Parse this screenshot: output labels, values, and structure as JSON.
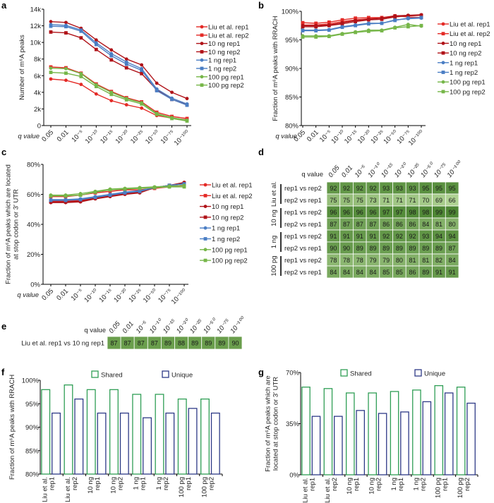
{
  "q_values": [
    "0.05",
    "0.01",
    "10⁻⁵",
    "10⁻¹⁰",
    "10⁻¹⁵",
    "10⁻²⁰",
    "10⁻²⁵",
    "10⁻⁵⁰",
    "10⁻⁷⁵",
    "10⁻¹⁰⁰"
  ],
  "q_label": "q value",
  "series_style": [
    {
      "name": "Liu et al. rep1",
      "color": "#e42a26",
      "marker": "circle"
    },
    {
      "name": "Liu et al. rep2",
      "color": "#e42a26",
      "marker": "square"
    },
    {
      "name": "10 ng rep1",
      "color": "#b01319",
      "marker": "circle"
    },
    {
      "name": "10 ng rep2",
      "color": "#b01319",
      "marker": "square"
    },
    {
      "name": "1 ng rep1",
      "color": "#4a7ec4",
      "marker": "circle"
    },
    {
      "name": "1 ng rep2",
      "color": "#4a7ec4",
      "marker": "square"
    },
    {
      "name": "100 pg rep1",
      "color": "#76b649",
      "marker": "circle"
    },
    {
      "name": "100 pg rep2",
      "color": "#76b649",
      "marker": "square"
    }
  ],
  "chart_data": [
    {
      "panel": "a",
      "type": "line",
      "xlabel": "q value",
      "ylabel": [
        "Number of m⁶A peaks"
      ],
      "ylim": [
        0,
        14000
      ],
      "yticks": [
        0,
        2000,
        4000,
        6000,
        8000,
        10000,
        12000,
        14000
      ],
      "ytick_labels": [
        "0",
        "2k",
        "4k",
        "6k",
        "8k",
        "10k",
        "12k",
        "14k"
      ],
      "legend": "right",
      "grid": false,
      "series": [
        {
          "name": "Liu et al. rep1",
          "values": [
            5600,
            5450,
            4950,
            3800,
            3000,
            2500,
            2100,
            1200,
            900,
            700
          ]
        },
        {
          "name": "Liu et al. rep2",
          "values": [
            7050,
            6950,
            6300,
            5000,
            4100,
            3350,
            2850,
            1600,
            1100,
            850
          ]
        },
        {
          "name": "10 ng rep1",
          "values": [
            12500,
            12400,
            11700,
            10300,
            9100,
            8000,
            7300,
            5100,
            4000,
            3250
          ]
        },
        {
          "name": "10 ng rep2",
          "values": [
            11250,
            11150,
            10550,
            9150,
            7900,
            6950,
            6250,
            4300,
            3150,
            2500
          ]
        },
        {
          "name": "1 ng rep1",
          "values": [
            12150,
            12050,
            11500,
            9950,
            8650,
            7650,
            6850,
            4400,
            3300,
            2600
          ]
        },
        {
          "name": "1 ng rep2",
          "values": [
            11950,
            11900,
            11350,
            9750,
            8400,
            7400,
            6650,
            4200,
            3150,
            2450
          ]
        },
        {
          "name": "100 pg rep1",
          "values": [
            6900,
            6850,
            6250,
            4900,
            4000,
            3250,
            2750,
            1450,
            950,
            650
          ]
        },
        {
          "name": "100 pg rep2",
          "values": [
            6400,
            6300,
            5900,
            4700,
            3750,
            3100,
            2600,
            1350,
            850,
            550
          ]
        }
      ]
    },
    {
      "panel": "b",
      "type": "line",
      "xlabel": "q value",
      "ylabel": [
        "Fraction of m⁶A peaks with RRACH"
      ],
      "ylim": [
        80,
        100
      ],
      "yticks": [
        80,
        85,
        90,
        95,
        100
      ],
      "ytick_labels": [
        "80%",
        "85%",
        "90%",
        "95%",
        "100%"
      ],
      "legend": "right",
      "grid": false,
      "series": [
        {
          "name": "Liu et al. rep1",
          "values": [
            97.6,
            97.6,
            97.8,
            98.2,
            98.5,
            98.7,
            98.8,
            99.1,
            99.2,
            99.3
          ]
        },
        {
          "name": "Liu et al. rep2",
          "values": [
            98.0,
            97.9,
            98.1,
            98.5,
            98.8,
            98.9,
            98.9,
            99.2,
            99.0,
            98.9
          ]
        },
        {
          "name": "10 ng rep1",
          "values": [
            97.5,
            97.5,
            97.6,
            98.0,
            98.4,
            98.6,
            98.8,
            99.2,
            99.3,
            99.4
          ]
        },
        {
          "name": "10 ng rep2",
          "values": [
            97.3,
            97.3,
            97.5,
            97.8,
            98.2,
            98.5,
            98.6,
            99.0,
            99.2,
            99.3
          ]
        },
        {
          "name": "1 ng rep1",
          "values": [
            96.7,
            96.7,
            96.8,
            97.3,
            97.6,
            97.9,
            97.9,
            98.5,
            98.7,
            98.8
          ]
        },
        {
          "name": "1 ng rep2",
          "values": [
            96.6,
            96.6,
            96.7,
            97.2,
            97.5,
            97.8,
            97.9,
            98.4,
            98.8,
            98.9
          ]
        },
        {
          "name": "100 pg rep1",
          "values": [
            95.7,
            95.7,
            95.7,
            96.1,
            96.4,
            96.7,
            96.7,
            97.2,
            97.7,
            97.4
          ]
        },
        {
          "name": "100 pg rep2",
          "values": [
            95.5,
            95.5,
            95.6,
            96.0,
            96.3,
            96.5,
            96.6,
            97.1,
            97.3,
            97.5
          ]
        }
      ]
    },
    {
      "panel": "c",
      "type": "line",
      "xlabel": "q value",
      "ylabel": [
        "Fraction of m⁶A peaks which are located",
        "at stop codon or 3′ UTR"
      ],
      "ylim": [
        0,
        80
      ],
      "yticks": [
        0,
        20,
        40,
        60,
        80
      ],
      "ytick_labels": [
        "0%",
        "20%",
        "40%",
        "60%",
        "80%"
      ],
      "legend": "right",
      "grid": false,
      "series": [
        {
          "name": "Liu et al. rep1",
          "values": [
            55.5,
            55.5,
            56,
            58,
            59.5,
            61,
            62,
            64,
            65,
            66
          ]
        },
        {
          "name": "Liu et al. rep2",
          "values": [
            58.5,
            58.5,
            59.5,
            61,
            62,
            63,
            63,
            64,
            65.5,
            66
          ]
        },
        {
          "name": "10 ng rep1",
          "values": [
            54.5,
            54.5,
            55,
            57,
            58.5,
            60,
            61,
            64.5,
            66,
            68
          ]
        },
        {
          "name": "10 ng rep2",
          "values": [
            55,
            55,
            55.5,
            57.5,
            59,
            60.5,
            61.5,
            64.5,
            66,
            67.5
          ]
        },
        {
          "name": "1 ng rep1",
          "values": [
            56.5,
            56.5,
            57,
            58.5,
            60,
            61.5,
            62.5,
            64.5,
            66,
            67
          ]
        },
        {
          "name": "1 ng rep2",
          "values": [
            56,
            56,
            56.5,
            58,
            59.5,
            61,
            62,
            64.5,
            66,
            67
          ]
        },
        {
          "name": "100 pg rep1",
          "values": [
            59.5,
            59.5,
            60.5,
            62,
            63.5,
            64,
            64.5,
            65,
            65.5,
            66
          ]
        },
        {
          "name": "100 pg rep2",
          "values": [
            59,
            59,
            59.5,
            61.5,
            63,
            63.5,
            64,
            64.5,
            65,
            65
          ]
        }
      ]
    },
    {
      "panel": "d",
      "type": "heatmap",
      "xlabel": "q value",
      "groups": [
        {
          "name": "Liu et al.",
          "rows": [
            {
              "label": "rep1 vs rep2",
              "values": [
                92,
                92,
                92,
                92,
                93,
                93,
                93,
                95,
                95,
                95
              ]
            },
            {
              "label": "rep2 vs rep1",
              "values": [
                75,
                75,
                75,
                73,
                71,
                71,
                71,
                70,
                69,
                66
              ]
            }
          ]
        },
        {
          "name": "10 ng",
          "rows": [
            {
              "label": "rep1 vs rep2",
              "values": [
                96,
                96,
                96,
                96,
                97,
                97,
                98,
                98,
                99,
                99
              ]
            },
            {
              "label": "rep2 vs rep1",
              "values": [
                87,
                87,
                87,
                87,
                86,
                86,
                86,
                84,
                81,
                80
              ]
            }
          ]
        },
        {
          "name": "1 ng",
          "rows": [
            {
              "label": "rep1 vs rep2",
              "values": [
                91,
                91,
                91,
                91,
                92,
                92,
                92,
                93,
                94,
                94
              ]
            },
            {
              "label": "rep2 vs rep1",
              "values": [
                90,
                90,
                89,
                89,
                89,
                89,
                89,
                89,
                89,
                87
              ]
            }
          ]
        },
        {
          "name": "100 pg",
          "rows": [
            {
              "label": "rep1 vs rep2",
              "values": [
                78,
                78,
                78,
                79,
                79,
                80,
                81,
                81,
                82,
                84
              ]
            },
            {
              "label": "rep2 vs rep1",
              "values": [
                84,
                84,
                84,
                84,
                85,
                85,
                86,
                89,
                91,
                91
              ]
            }
          ]
        }
      ]
    },
    {
      "panel": "e",
      "type": "heatmap",
      "xlabel": "q value",
      "rows": [
        {
          "label": "Liu et al.  rep1 vs 10 ng rep1",
          "values": [
            87,
            87,
            87,
            87,
            89,
            88,
            89,
            89,
            89,
            90
          ]
        }
      ]
    },
    {
      "panel": "f",
      "type": "bar",
      "ylabel": [
        "Fraction of m⁶A peaks with RRACH"
      ],
      "ylim": [
        80,
        100
      ],
      "yticks": [
        80,
        85,
        90,
        95,
        100
      ],
      "ytick_labels": [
        "80%",
        "85%",
        "90%",
        "95%",
        "100%"
      ],
      "legend": "top",
      "grid": false,
      "categories": [
        [
          "Liu et al.",
          "rep1"
        ],
        [
          "Liu et al.",
          "rep2"
        ],
        [
          "10 ng",
          "rep1"
        ],
        [
          "10 ng",
          "rep2"
        ],
        [
          "1 ng",
          "rep1"
        ],
        [
          "1 ng",
          "rep2"
        ],
        [
          "100 pg",
          "rep1"
        ],
        [
          "100 pg",
          "rep2"
        ]
      ],
      "series": [
        {
          "name": "Shared",
          "color": "#2f9e55",
          "values": [
            98,
            99,
            98,
            98,
            97,
            97,
            96,
            96
          ]
        },
        {
          "name": "Unique",
          "color": "#2e3a87",
          "values": [
            93,
            96,
            93,
            93,
            92,
            93,
            94,
            93
          ]
        }
      ]
    },
    {
      "panel": "g",
      "type": "bar",
      "ylabel": [
        "Fraction of m⁶A peaks which are",
        "located at stop codon or 3′ UTR"
      ],
      "ylim": [
        0,
        70
      ],
      "yticks": [
        0,
        35,
        70
      ],
      "ytick_labels": [
        "0%",
        "35%",
        "70%"
      ],
      "legend": "top",
      "grid": false,
      "categories": [
        [
          "Liu et al.",
          "rep1"
        ],
        [
          "Liu et al.",
          "rep2"
        ],
        [
          "10 ng",
          "rep1"
        ],
        [
          "10 ng",
          "rep2"
        ],
        [
          "1 ng",
          "rep1"
        ],
        [
          "1 ng",
          "rep2"
        ],
        [
          "100 pg",
          "rep1"
        ],
        [
          "100 pg",
          "rep2"
        ]
      ],
      "series": [
        {
          "name": "Shared",
          "color": "#2f9e55",
          "values": [
            60,
            59,
            56,
            56,
            57,
            58,
            61,
            60
          ]
        },
        {
          "name": "Unique",
          "color": "#2e3a87",
          "values": [
            40,
            40,
            44,
            42,
            43,
            50,
            56,
            49
          ]
        }
      ]
    }
  ]
}
